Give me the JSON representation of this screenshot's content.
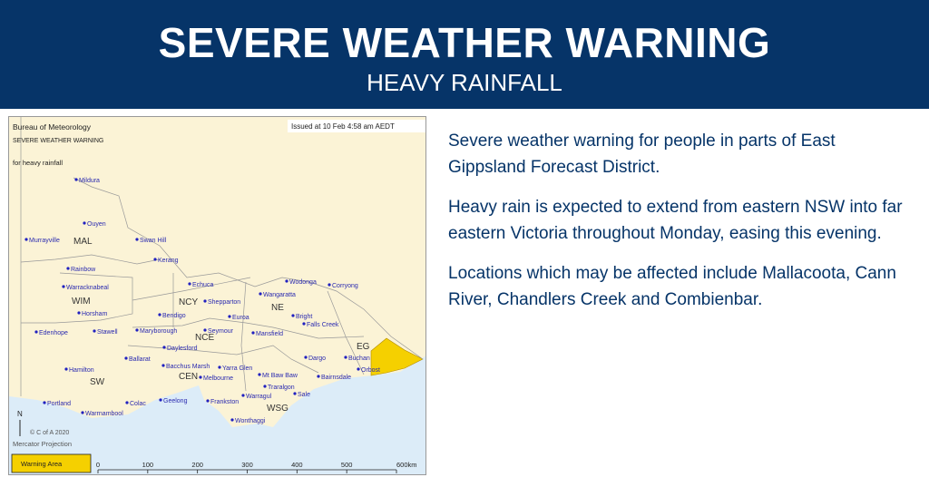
{
  "header": {
    "title": "SEVERE WEATHER WARNING",
    "subtitle": "HEAVY RAINFALL"
  },
  "map": {
    "source": "Bureau of Meteorology",
    "heading": "SEVERE WEATHER WARNING",
    "hazard": "for heavy rainfall",
    "issued": "Issued at 10 Feb 4:58 am AEDT",
    "north": "N",
    "copyright": "© C of A 2020",
    "projection": "Mercator Projection",
    "legend": "Warning Area",
    "scale": [
      "0",
      "100",
      "200",
      "300",
      "400",
      "500",
      "600km"
    ],
    "districts": [
      "MAL",
      "WIM",
      "NCY",
      "NE",
      "NCE",
      "EG",
      "CEN",
      "SW",
      "WSG"
    ],
    "towns": [
      "Mildura",
      "Ouyen",
      "Murrayville",
      "Swan Hill",
      "Kerang",
      "Rainbow",
      "Echuca",
      "Wodonga",
      "Corryong",
      "Warracknabeal",
      "Shepparton",
      "Wangaratta",
      "Horsham",
      "Bendigo",
      "Euroa",
      "Bright",
      "Falls Creek",
      "Edenhope",
      "Stawell",
      "Maryborough",
      "Seymour",
      "Mansfield",
      "Daylesford",
      "Ballarat",
      "Bacchus Marsh",
      "Yarra Glen",
      "Dargo",
      "Buchan",
      "Orbost",
      "Hamilton",
      "Melbourne",
      "Mt Baw Baw",
      "Bairnsdale",
      "Traralgon",
      "Warragul",
      "Sale",
      "Portland",
      "Colac",
      "Geelong",
      "Frankston",
      "Warrnambool",
      "Wonthaggi"
    ]
  },
  "body": {
    "paragraphs": [
      "Severe weather warning for people in parts of East Gippsland Forecast District.",
      "Heavy rain is expected to extend from eastern NSW into far eastern Victoria throughout Monday, easing this evening.",
      "Locations which may be affected include Mallacoota, Cann River, Chandlers Creek and Combienbar."
    ]
  }
}
